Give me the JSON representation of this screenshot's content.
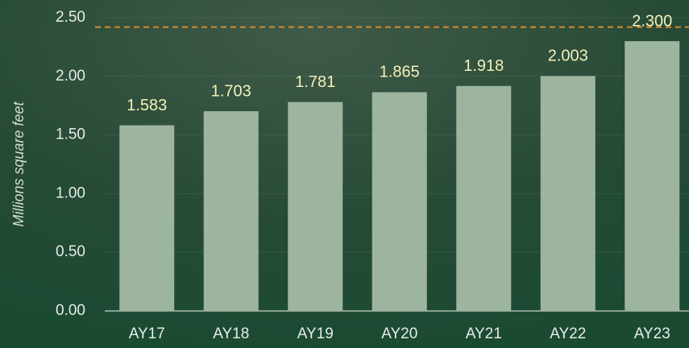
{
  "chart_data": {
    "type": "bar",
    "y_label": "Millions square feet",
    "categories": [
      "AY17",
      "AY18",
      "AY19",
      "AY20",
      "AY21",
      "AY22",
      "AY23"
    ],
    "values": [
      1.583,
      1.703,
      1.781,
      1.865,
      1.918,
      2.003,
      2.3
    ],
    "value_labels": [
      "1.583",
      "1.703",
      "1.781",
      "1.865",
      "1.918",
      "2.003",
      "2.300"
    ],
    "color": "#9db59f",
    "ylim": [
      0,
      2.5
    ],
    "yticks": [
      {
        "value": 0,
        "label": "0.00"
      },
      {
        "value": 0.5,
        "label": "0.50"
      },
      {
        "value": 1,
        "label": "1.00"
      },
      {
        "value": 1.5,
        "label": "1.50"
      },
      {
        "value": 2,
        "label": "2.00"
      },
      {
        "value": 2.5,
        "label": "2.50"
      }
    ],
    "grid": true,
    "reference_line": {
      "value": 2.42,
      "color": "#d9892b"
    }
  }
}
